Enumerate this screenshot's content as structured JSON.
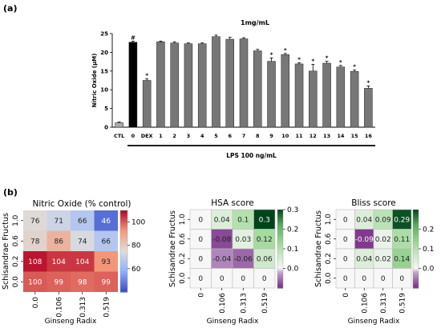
{
  "panel_a_label": "(a)",
  "panel_b_label": "(b)",
  "chart_data": [
    {
      "type": "bar",
      "title": "1mg/mL",
      "ylabel": "Nitric Oxide (μM)",
      "xlabel": "LPS 100 ng/mL",
      "ylim": [
        0,
        25
      ],
      "yticks": [
        0,
        5,
        10,
        15,
        20,
        25
      ],
      "categories": [
        "CTL",
        "0",
        "DEX",
        "1",
        "2",
        "3",
        "4",
        "5",
        "6",
        "7",
        "8",
        "9",
        "10",
        "11",
        "12",
        "13",
        "14",
        "15",
        "16"
      ],
      "values": [
        1.2,
        22.7,
        12.5,
        22.8,
        22.5,
        22.3,
        22.3,
        24.2,
        23.5,
        23.6,
        20.4,
        17.6,
        19.4,
        16.9,
        15.0,
        17.1,
        16.1,
        14.9,
        10.4
      ],
      "errors": [
        0.2,
        0.3,
        0.4,
        0.2,
        0.3,
        0.2,
        0.2,
        0.4,
        0.5,
        0.3,
        0.4,
        0.9,
        0.3,
        0.3,
        1.8,
        0.5,
        0.4,
        0.4,
        0.6
      ],
      "annotations": [
        "",
        "#",
        "*",
        "",
        "",
        "",
        "",
        "",
        "",
        "",
        "",
        "*",
        "*",
        "*",
        "*",
        "*",
        "*",
        "*",
        "*"
      ],
      "colors": {
        "ctl": "#aaaaaa",
        "lps0": "#000000",
        "default": "#777777"
      }
    },
    {
      "type": "heatmap",
      "title": "Nitric Oxide (% control)",
      "xlabel": "Ginseng Radix",
      "ylabel": "Schisandrae Fructus",
      "x": [
        "0.0",
        "0.106",
        "0.313",
        "0.519"
      ],
      "y": [
        "1.0",
        "0.6",
        "0.2",
        "0.0"
      ],
      "z": [
        [
          76,
          71,
          66,
          46
        ],
        [
          78,
          86,
          74,
          66
        ],
        [
          108,
          104,
          104,
          93
        ],
        [
          100,
          99,
          98,
          99
        ]
      ],
      "colorbar_ticks": [
        "100",
        "80",
        "60"
      ],
      "colorbar_range": [
        40,
        110
      ]
    },
    {
      "type": "heatmap",
      "title": "HSA score",
      "xlabel": "Ginseng Radix",
      "ylabel": "Schisandrae Fructus",
      "x": [
        "0",
        "0.106",
        "0.313",
        "0.519"
      ],
      "y": [
        "1.0",
        "0.6",
        "0.2",
        "0.0"
      ],
      "z": [
        [
          "0",
          "0.04",
          "0.1",
          "0.3"
        ],
        [
          "0",
          "-0.08",
          "0.03",
          "0.12"
        ],
        [
          "0",
          "-0.04",
          "-0.06",
          "0.06"
        ],
        [
          "0",
          "0",
          "0",
          "0"
        ]
      ],
      "colorbar_ticks": [
        "0.3",
        "0.2",
        "0.1",
        "0.0"
      ],
      "colorbar_range": [
        -0.1,
        0.3
      ]
    },
    {
      "type": "heatmap",
      "title": "Bliss score",
      "xlabel": "Ginseng Radix",
      "ylabel": "Schisandrae Fructus",
      "x": [
        "0",
        "0.106",
        "0.313",
        "0.519"
      ],
      "y": [
        "1.0",
        "0.6",
        "0.2",
        "0.0"
      ],
      "z": [
        [
          "0",
          "0.04",
          "0.09",
          "0.29"
        ],
        [
          "0",
          "-0.09",
          "0.02",
          "0.11"
        ],
        [
          "0",
          "0.04",
          "0.02",
          "0.14"
        ],
        [
          "0",
          "0",
          "0",
          "0"
        ]
      ],
      "colorbar_ticks": [
        "0.2",
        "0.1",
        "0.0"
      ],
      "colorbar_range": [
        -0.1,
        0.3
      ]
    }
  ]
}
